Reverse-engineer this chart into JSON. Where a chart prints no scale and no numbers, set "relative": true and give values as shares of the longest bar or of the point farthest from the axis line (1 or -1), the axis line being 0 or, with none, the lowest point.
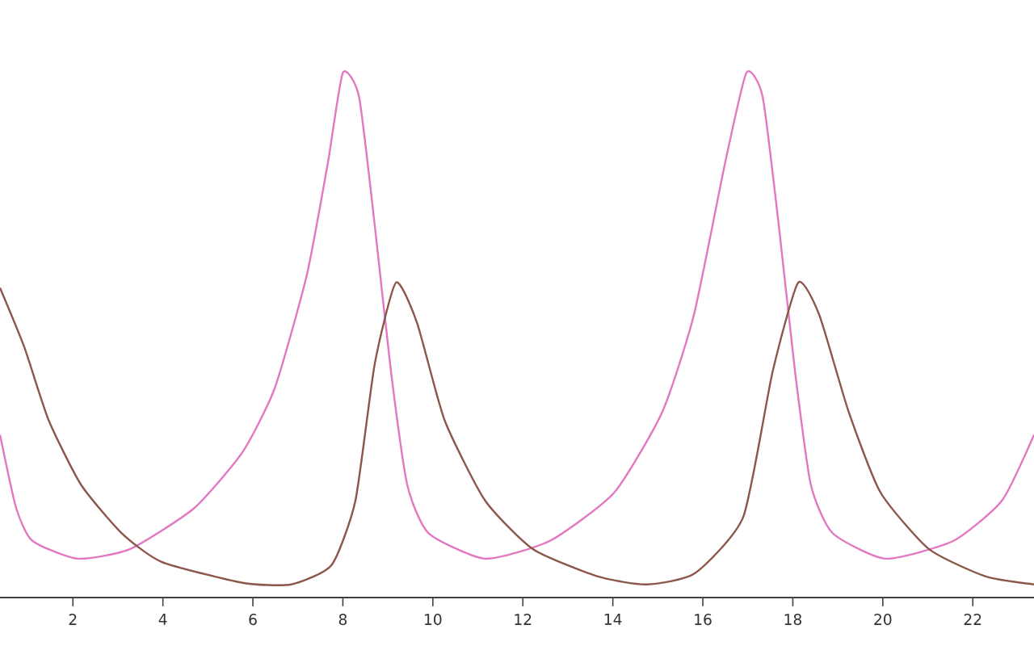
{
  "chart_data": {
    "type": "line",
    "relative": true,
    "xlim": [
      0.38,
      23.36
    ],
    "xticks": [
      2,
      4,
      6,
      8,
      10,
      12,
      14,
      16,
      18,
      20,
      22
    ],
    "series": [
      {
        "color": "#e377c2",
        "x": [
          0.38,
          0.74,
          1.1,
          2.1,
          3.26,
          4.69,
          5.77,
          6.49,
          7.2,
          7.67,
          8.0,
          8.36,
          8.71,
          9.07,
          9.43,
          9.9,
          11.16,
          12.6,
          14.03,
          15.1,
          15.8,
          16.5,
          16.97,
          17.33,
          17.69,
          18.05,
          18.4,
          18.88,
          20.06,
          21.57,
          22.65,
          23.36
        ],
        "values": [
          0.31,
          0.17,
          0.108,
          0.074,
          0.092,
          0.17,
          0.277,
          0.4,
          0.615,
          0.83,
          1.0,
          0.954,
          0.708,
          0.43,
          0.215,
          0.123,
          0.074,
          0.108,
          0.2,
          0.354,
          0.538,
          0.83,
          1.0,
          0.954,
          0.708,
          0.43,
          0.215,
          0.123,
          0.074,
          0.108,
          0.185,
          0.31
        ]
      },
      {
        "color": "#8c564b",
        "x": [
          0.38,
          0.92,
          1.46,
          2.18,
          3.08,
          3.97,
          5.77,
          6.85,
          7.75,
          8.28,
          8.71,
          9.18,
          9.65,
          10.26,
          11.16,
          12.23,
          13.67,
          14.75,
          15.82,
          16.9,
          17.55,
          18.12,
          18.59,
          19.24,
          19.95,
          21.03,
          22.29,
          23.36
        ],
        "values": [
          0.59,
          0.477,
          0.338,
          0.215,
          0.123,
          0.068,
          0.028,
          0.025,
          0.062,
          0.185,
          0.446,
          0.6,
          0.523,
          0.338,
          0.185,
          0.092,
          0.04,
          0.025,
          0.046,
          0.154,
          0.43,
          0.6,
          0.538,
          0.354,
          0.2,
          0.092,
          0.04,
          0.025
        ]
      }
    ]
  }
}
